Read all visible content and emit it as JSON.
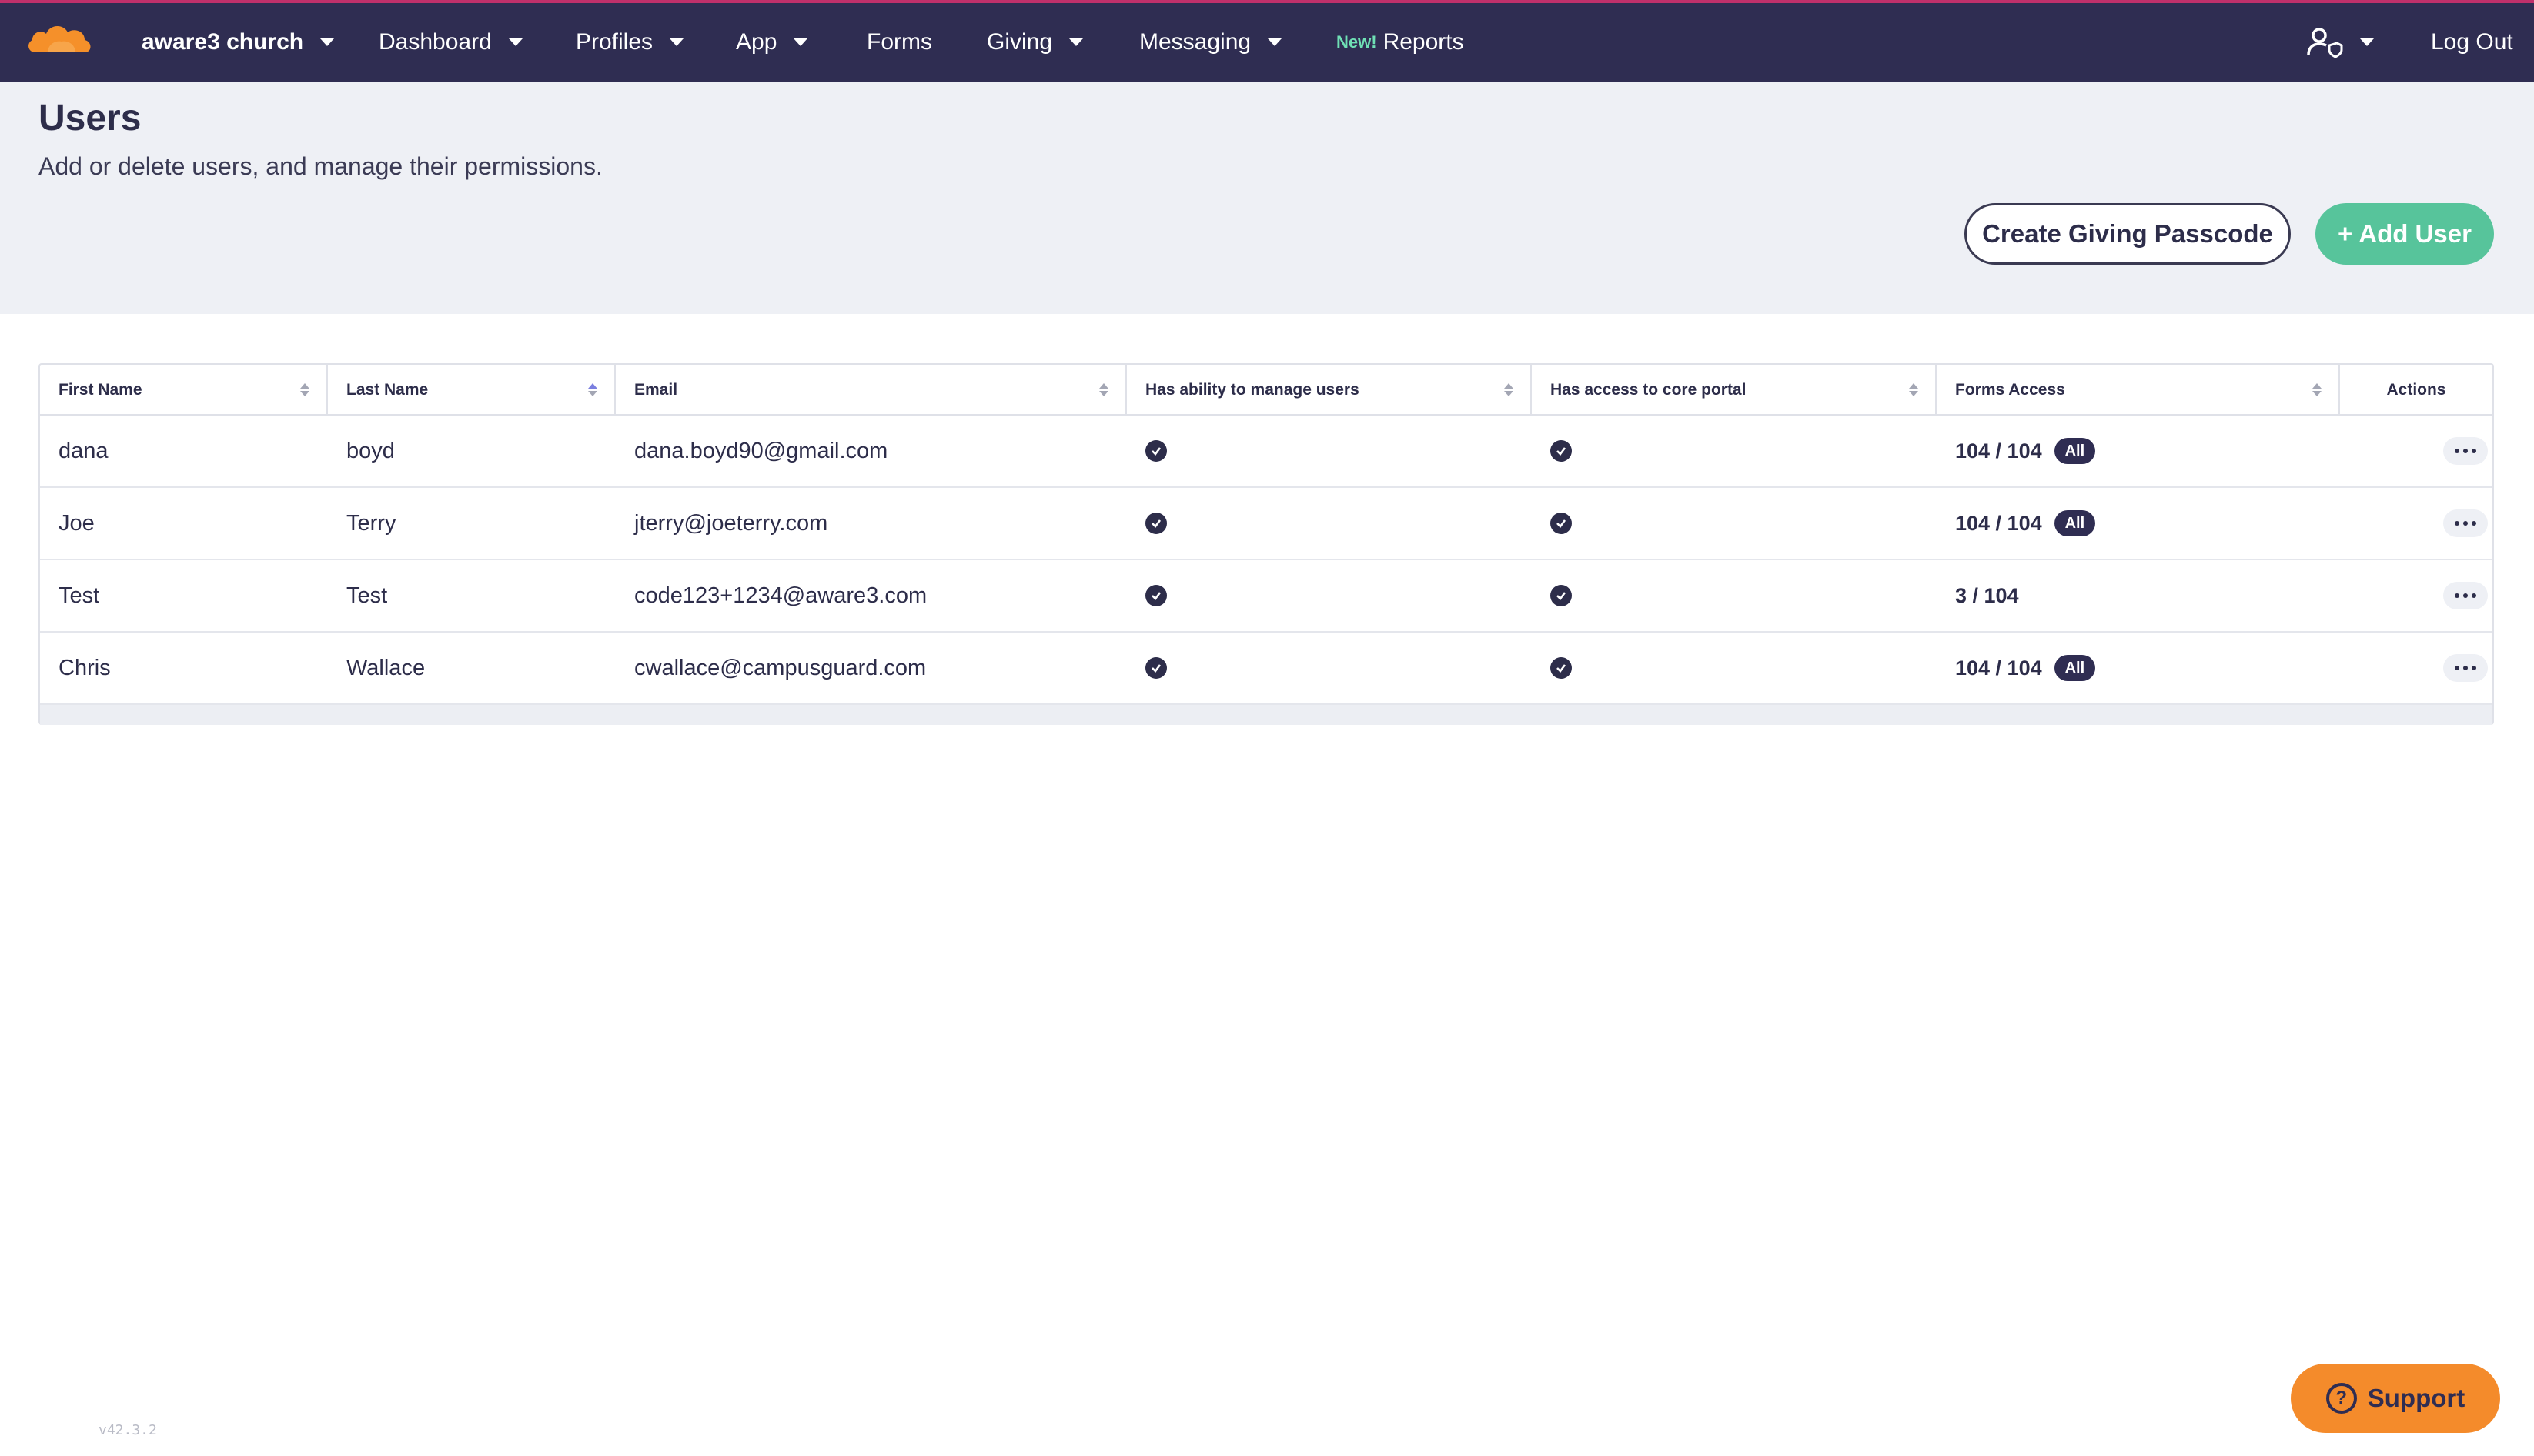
{
  "nav": {
    "brand": "aware3 church",
    "items": [
      {
        "label": "Dashboard",
        "dropdown": true
      },
      {
        "label": "Profiles",
        "dropdown": true
      },
      {
        "label": "App",
        "dropdown": true
      },
      {
        "label": "Forms",
        "dropdown": false
      },
      {
        "label": "Giving",
        "dropdown": true
      },
      {
        "label": "Messaging",
        "dropdown": true
      }
    ],
    "reports_new_badge": "New!",
    "reports_label": "Reports",
    "account_icon": "user-shield-icon",
    "logout_label": "Log Out"
  },
  "header": {
    "title": "Users",
    "subtitle": "Add or delete users, and manage their permissions.",
    "create_passcode_label": "Create Giving Passcode",
    "add_user_label": "+ Add User"
  },
  "table": {
    "columns": [
      "First Name",
      "Last Name",
      "Email",
      "Has ability to manage users",
      "Has access to core portal",
      "Forms Access",
      "Actions"
    ],
    "sorted_column": "Last Name",
    "rows": [
      {
        "first": "dana",
        "last": "boyd",
        "email": "dana.boyd90@gmail.com",
        "manage": true,
        "portal": true,
        "forms": "104 / 104",
        "badge": "All"
      },
      {
        "first": "Joe",
        "last": "Terry",
        "email": "jterry@joeterry.com",
        "manage": true,
        "portal": true,
        "forms": "104 / 104",
        "badge": "All"
      },
      {
        "first": "Test",
        "last": "Test",
        "email": "code123+1234@aware3.com",
        "manage": true,
        "portal": true,
        "forms": "3 / 104",
        "badge": ""
      },
      {
        "first": "Chris",
        "last": "Wallace",
        "email": "cwallace@campusguard.com",
        "manage": true,
        "portal": true,
        "forms": "104 / 104",
        "badge": "All"
      }
    ]
  },
  "footer": {
    "version": "v42.3.2",
    "support_label": "Support"
  },
  "colors": {
    "nav_bg": "#2f2d52",
    "accent_green": "#57c49b",
    "support_orange": "#f48b2b",
    "logo_orange": "#f5902a"
  }
}
